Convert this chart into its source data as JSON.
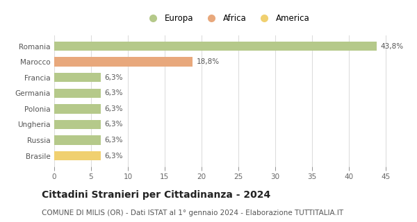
{
  "categories": [
    "Brasile",
    "Russia",
    "Ungheria",
    "Polonia",
    "Germania",
    "Francia",
    "Marocco",
    "Romania"
  ],
  "values": [
    6.3,
    6.3,
    6.3,
    6.3,
    6.3,
    6.3,
    18.8,
    43.8
  ],
  "bar_colors": [
    "#f0d070",
    "#b5c98a",
    "#b5c98a",
    "#b5c98a",
    "#b5c98a",
    "#b5c98a",
    "#e8a87c",
    "#b5c98a"
  ],
  "labels": [
    "6,3%",
    "6,3%",
    "6,3%",
    "6,3%",
    "6,3%",
    "6,3%",
    "18,8%",
    "43,8%"
  ],
  "legend_entries": [
    {
      "label": "Europa",
      "color": "#b5c98a"
    },
    {
      "label": "Africa",
      "color": "#e8a87c"
    },
    {
      "label": "America",
      "color": "#f0d070"
    }
  ],
  "title": "Cittadini Stranieri per Cittadinanza - 2024",
  "subtitle": "COMUNE DI MILIS (OR) - Dati ISTAT al 1° gennaio 2024 - Elaborazione TUTTITALIA.IT",
  "xlim": [
    0,
    47
  ],
  "xticks": [
    0,
    5,
    10,
    15,
    20,
    25,
    30,
    35,
    40,
    45
  ],
  "background_color": "#ffffff",
  "grid_color": "#dddddd",
  "label_fontsize": 7.5,
  "title_fontsize": 10,
  "subtitle_fontsize": 7.5,
  "tick_fontsize": 7.5,
  "legend_fontsize": 8.5,
  "ylabel_fontsize": 7.5
}
